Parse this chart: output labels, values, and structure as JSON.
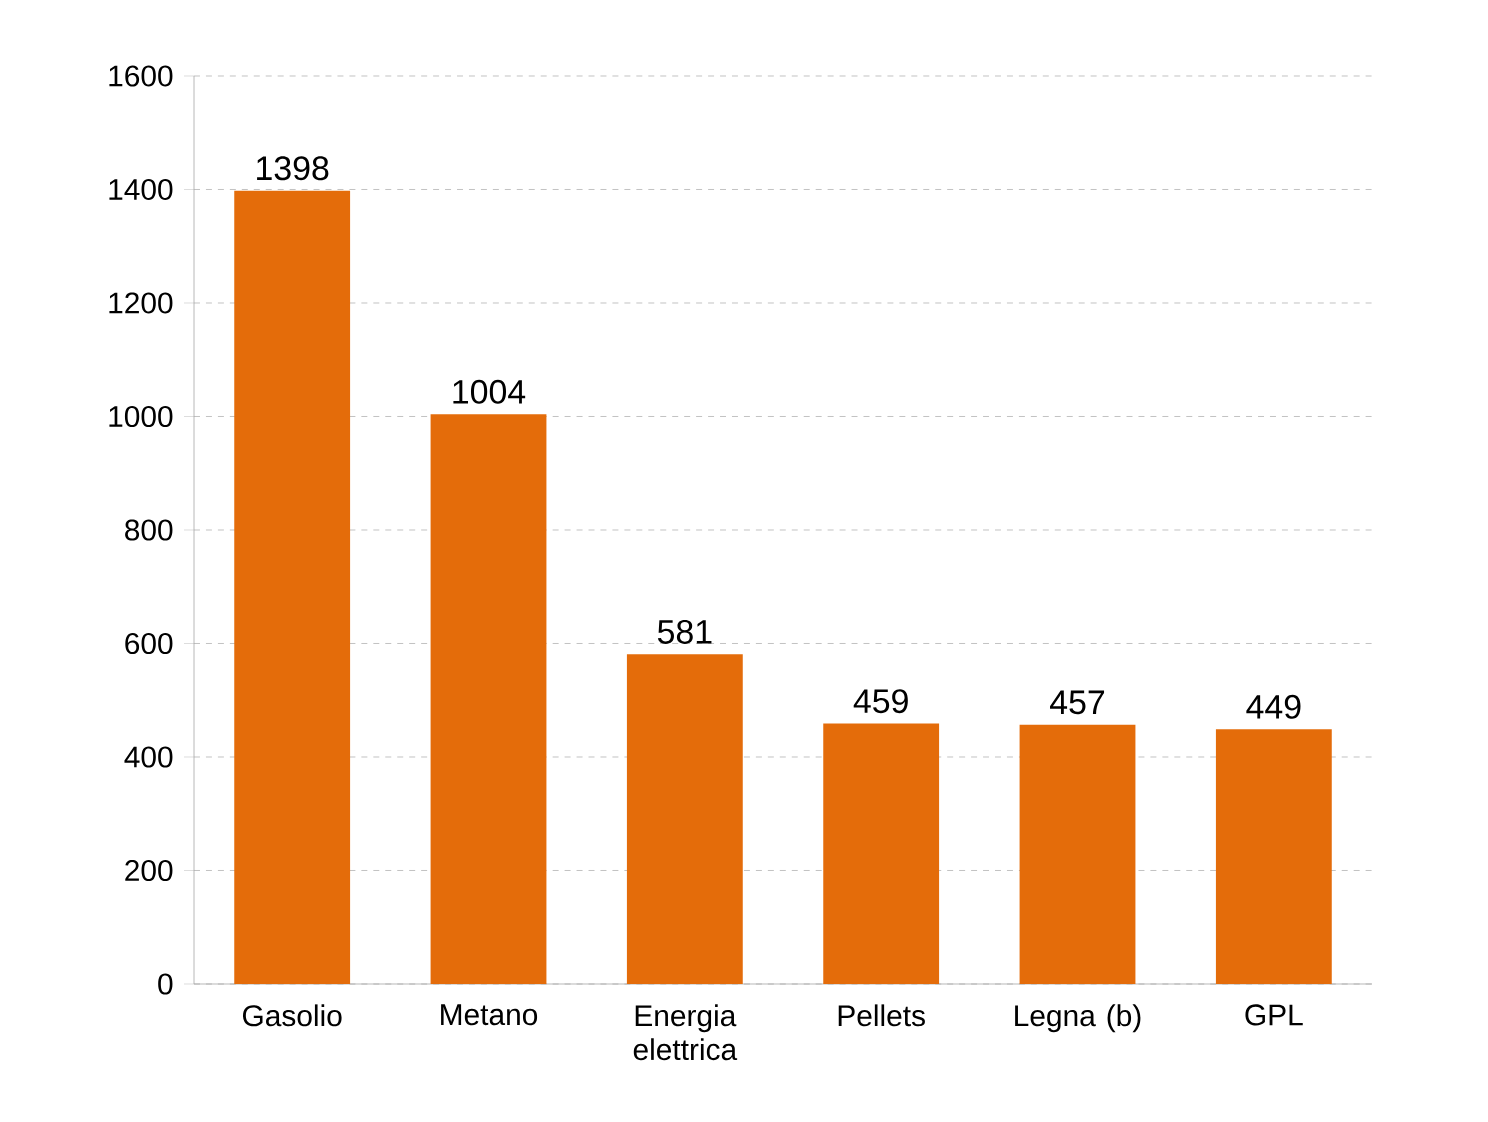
{
  "chart_data": {
    "type": "bar",
    "categories": [
      "Gasolio",
      "Metano",
      "Energia elettrica",
      "Pellets",
      "Legna (b)",
      "GPL"
    ],
    "values": [
      1398,
      1004,
      581,
      459,
      457,
      449
    ],
    "color": "#e46c0a",
    "ylim": [
      0,
      1600
    ],
    "yticks": [
      0,
      200,
      400,
      600,
      800,
      1000,
      1200,
      1400,
      1600
    ],
    "grid": "y",
    "data_labels": true
  }
}
